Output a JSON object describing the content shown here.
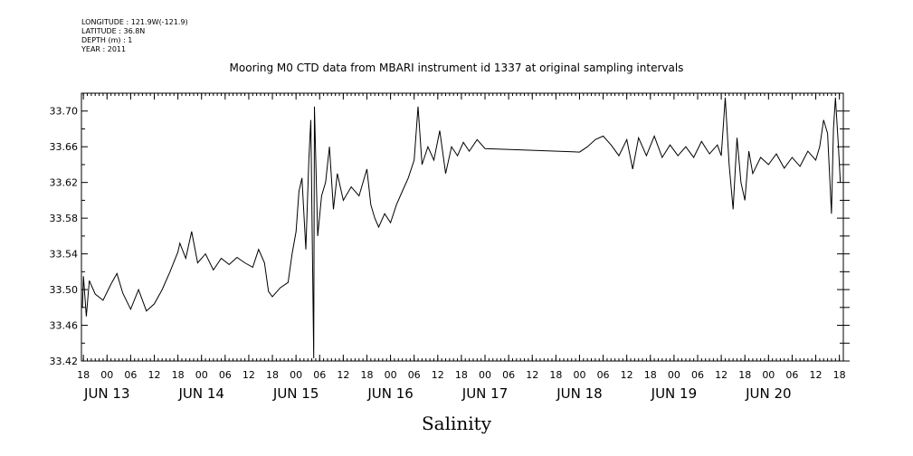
{
  "meta": {
    "longitude": "LONGITUDE : 121.9W(-121.9)",
    "latitude": "LATITUDE : 36.8N",
    "depth": "DEPTH (m) : 1",
    "year": "YEAR : 2011"
  },
  "chart_data": {
    "type": "line",
    "title": "Mooring M0 CTD data from MBARI instrument id 1337 at original sampling intervals",
    "xlabel": "Salinity",
    "ylabel": "",
    "xlim": [
      "2011-06-12T17:30",
      "2011-06-20T19:00"
    ],
    "ylim": [
      33.42,
      33.72
    ],
    "y_ticks": [
      "33.42",
      "33.46",
      "33.50",
      "33.54",
      "33.58",
      "33.62",
      "33.66",
      "33.70"
    ],
    "x_hour_ticks": [
      {
        "t": "2011-06-12T18:00",
        "label": "18"
      },
      {
        "t": "2011-06-13T00:00",
        "label": "00"
      },
      {
        "t": "2011-06-13T06:00",
        "label": "06"
      },
      {
        "t": "2011-06-13T12:00",
        "label": "12"
      },
      {
        "t": "2011-06-13T18:00",
        "label": "18"
      },
      {
        "t": "2011-06-14T00:00",
        "label": "00"
      },
      {
        "t": "2011-06-14T06:00",
        "label": "06"
      },
      {
        "t": "2011-06-14T12:00",
        "label": "12"
      },
      {
        "t": "2011-06-14T18:00",
        "label": "18"
      },
      {
        "t": "2011-06-15T00:00",
        "label": "00"
      },
      {
        "t": "2011-06-15T06:00",
        "label": "06"
      },
      {
        "t": "2011-06-15T12:00",
        "label": "12"
      },
      {
        "t": "2011-06-15T18:00",
        "label": "18"
      },
      {
        "t": "2011-06-16T00:00",
        "label": "00"
      },
      {
        "t": "2011-06-16T06:00",
        "label": "06"
      },
      {
        "t": "2011-06-16T12:00",
        "label": "12"
      },
      {
        "t": "2011-06-16T18:00",
        "label": "18"
      },
      {
        "t": "2011-06-17T00:00",
        "label": "00"
      },
      {
        "t": "2011-06-17T06:00",
        "label": "06"
      },
      {
        "t": "2011-06-17T12:00",
        "label": "12"
      },
      {
        "t": "2011-06-17T18:00",
        "label": "18"
      },
      {
        "t": "2011-06-18T00:00",
        "label": "00"
      },
      {
        "t": "2011-06-18T06:00",
        "label": "06"
      },
      {
        "t": "2011-06-18T12:00",
        "label": "12"
      },
      {
        "t": "2011-06-18T18:00",
        "label": "18"
      },
      {
        "t": "2011-06-19T00:00",
        "label": "00"
      },
      {
        "t": "2011-06-19T06:00",
        "label": "06"
      },
      {
        "t": "2011-06-19T12:00",
        "label": "12"
      },
      {
        "t": "2011-06-19T18:00",
        "label": "18"
      },
      {
        "t": "2011-06-20T00:00",
        "label": "00"
      },
      {
        "t": "2011-06-20T06:00",
        "label": "06"
      },
      {
        "t": "2011-06-20T12:00",
        "label": "12"
      },
      {
        "t": "2011-06-20T18:00",
        "label": "18"
      }
    ],
    "x_day_labels": [
      {
        "t": "2011-06-13T00:00",
        "label": "JUN 13"
      },
      {
        "t": "2011-06-14T00:00",
        "label": "JUN 14"
      },
      {
        "t": "2011-06-15T00:00",
        "label": "JUN 15"
      },
      {
        "t": "2011-06-16T00:00",
        "label": "JUN 16"
      },
      {
        "t": "2011-06-17T00:00",
        "label": "JUN 17"
      },
      {
        "t": "2011-06-18T00:00",
        "label": "JUN 18"
      },
      {
        "t": "2011-06-19T00:00",
        "label": "JUN 19"
      },
      {
        "t": "2011-06-20T00:00",
        "label": "JUN 20"
      }
    ],
    "grid": false,
    "series": [
      {
        "points": [
          [
            "2011-06-12T17:45",
            33.48
          ],
          [
            "2011-06-12T18:00",
            33.515
          ],
          [
            "2011-06-12T18:45",
            33.47
          ],
          [
            "2011-06-12T19:30",
            33.51
          ],
          [
            "2011-06-12T21:00",
            33.495
          ],
          [
            "2011-06-12T23:00",
            33.488
          ],
          [
            "2011-06-13T01:00",
            33.506
          ],
          [
            "2011-06-13T02:30",
            33.518
          ],
          [
            "2011-06-13T04:00",
            33.496
          ],
          [
            "2011-06-13T06:00",
            33.478
          ],
          [
            "2011-06-13T08:00",
            33.5
          ],
          [
            "2011-06-13T10:00",
            33.476
          ],
          [
            "2011-06-13T12:00",
            33.484
          ],
          [
            "2011-06-13T14:00",
            33.5
          ],
          [
            "2011-06-13T16:00",
            33.52
          ],
          [
            "2011-06-13T18:00",
            33.542
          ],
          [
            "2011-06-13T18:30",
            33.552
          ],
          [
            "2011-06-13T20:00",
            33.535
          ],
          [
            "2011-06-13T21:30",
            33.565
          ],
          [
            "2011-06-13T23:00",
            33.53
          ],
          [
            "2011-06-14T01:00",
            33.54
          ],
          [
            "2011-06-14T03:00",
            33.522
          ],
          [
            "2011-06-14T05:00",
            33.535
          ],
          [
            "2011-06-14T07:00",
            33.528
          ],
          [
            "2011-06-14T09:00",
            33.536
          ],
          [
            "2011-06-14T11:00",
            33.53
          ],
          [
            "2011-06-14T13:00",
            33.525
          ],
          [
            "2011-06-14T14:30",
            33.545
          ],
          [
            "2011-06-14T16:00",
            33.53
          ],
          [
            "2011-06-14T17:00",
            33.498
          ],
          [
            "2011-06-14T18:00",
            33.492
          ],
          [
            "2011-06-14T20:00",
            33.502
          ],
          [
            "2011-06-14T22:00",
            33.508
          ],
          [
            "2011-06-14T23:00",
            33.54
          ],
          [
            "2011-06-15T00:00",
            33.565
          ],
          [
            "2011-06-15T00:45",
            33.61
          ],
          [
            "2011-06-15T01:30",
            33.625
          ],
          [
            "2011-06-15T02:30",
            33.545
          ],
          [
            "2011-06-15T03:15",
            33.645
          ],
          [
            "2011-06-15T03:45",
            33.69
          ],
          [
            "2011-06-15T04:30",
            33.423
          ],
          [
            "2011-06-15T04:40",
            33.705
          ],
          [
            "2011-06-15T05:30",
            33.56
          ],
          [
            "2011-06-15T06:30",
            33.605
          ],
          [
            "2011-06-15T07:30",
            33.62
          ],
          [
            "2011-06-15T08:30",
            33.66
          ],
          [
            "2011-06-15T09:30",
            33.59
          ],
          [
            "2011-06-15T10:30",
            33.63
          ],
          [
            "2011-06-15T12:00",
            33.6
          ],
          [
            "2011-06-15T14:00",
            33.615
          ],
          [
            "2011-06-15T16:00",
            33.605
          ],
          [
            "2011-06-15T18:00",
            33.635
          ],
          [
            "2011-06-15T19:00",
            33.595
          ],
          [
            "2011-06-15T20:00",
            33.58
          ],
          [
            "2011-06-15T21:00",
            33.57
          ],
          [
            "2011-06-15T22:30",
            33.585
          ],
          [
            "2011-06-16T00:00",
            33.575
          ],
          [
            "2011-06-16T01:30",
            33.595
          ],
          [
            "2011-06-16T03:00",
            33.61
          ],
          [
            "2011-06-16T04:30",
            33.625
          ],
          [
            "2011-06-16T06:00",
            33.645
          ],
          [
            "2011-06-16T07:00",
            33.705
          ],
          [
            "2011-06-16T08:00",
            33.64
          ],
          [
            "2011-06-16T09:30",
            33.66
          ],
          [
            "2011-06-16T11:00",
            33.645
          ],
          [
            "2011-06-16T12:30",
            33.678
          ],
          [
            "2011-06-16T14:00",
            33.63
          ],
          [
            "2011-06-16T15:30",
            33.66
          ],
          [
            "2011-06-16T17:00",
            33.65
          ],
          [
            "2011-06-16T18:30",
            33.665
          ],
          [
            "2011-06-16T20:00",
            33.655
          ],
          [
            "2011-06-16T22:00",
            33.668
          ],
          [
            "2011-06-17T00:00",
            33.658
          ],
          [
            "2011-06-17T12:00",
            33.656
          ],
          [
            "2011-06-18T00:00",
            33.654
          ],
          [
            "2011-06-18T02:00",
            33.66
          ],
          [
            "2011-06-18T04:00",
            33.668
          ],
          [
            "2011-06-18T06:00",
            33.672
          ],
          [
            "2011-06-18T08:00",
            33.662
          ],
          [
            "2011-06-18T10:00",
            33.65
          ],
          [
            "2011-06-18T12:00",
            33.668
          ],
          [
            "2011-06-18T13:30",
            33.635
          ],
          [
            "2011-06-18T15:00",
            33.67
          ],
          [
            "2011-06-18T17:00",
            33.65
          ],
          [
            "2011-06-18T19:00",
            33.672
          ],
          [
            "2011-06-18T21:00",
            33.648
          ],
          [
            "2011-06-18T23:00",
            33.662
          ],
          [
            "2011-06-19T01:00",
            33.65
          ],
          [
            "2011-06-19T03:00",
            33.66
          ],
          [
            "2011-06-19T05:00",
            33.648
          ],
          [
            "2011-06-19T07:00",
            33.666
          ],
          [
            "2011-06-19T09:00",
            33.652
          ],
          [
            "2011-06-19T11:00",
            33.662
          ],
          [
            "2011-06-19T12:00",
            33.65
          ],
          [
            "2011-06-19T13:00",
            33.715
          ],
          [
            "2011-06-19T14:00",
            33.64
          ],
          [
            "2011-06-19T15:00",
            33.59
          ],
          [
            "2011-06-19T16:00",
            33.67
          ],
          [
            "2011-06-19T17:00",
            33.62
          ],
          [
            "2011-06-19T18:00",
            33.6
          ],
          [
            "2011-06-19T19:00",
            33.655
          ],
          [
            "2011-06-19T20:00",
            33.63
          ],
          [
            "2011-06-19T22:00",
            33.648
          ],
          [
            "2011-06-20T00:00",
            33.64
          ],
          [
            "2011-06-20T02:00",
            33.652
          ],
          [
            "2011-06-20T04:00",
            33.636
          ],
          [
            "2011-06-20T06:00",
            33.648
          ],
          [
            "2011-06-20T08:00",
            33.638
          ],
          [
            "2011-06-20T10:00",
            33.655
          ],
          [
            "2011-06-20T12:00",
            33.645
          ],
          [
            "2011-06-20T13:00",
            33.66
          ],
          [
            "2011-06-20T14:00",
            33.69
          ],
          [
            "2011-06-20T15:00",
            33.675
          ],
          [
            "2011-06-20T16:00",
            33.585
          ],
          [
            "2011-06-20T16:30",
            33.68
          ],
          [
            "2011-06-20T17:00",
            33.715
          ],
          [
            "2011-06-20T17:45",
            33.66
          ],
          [
            "2011-06-20T18:15",
            33.62
          ]
        ]
      }
    ]
  }
}
